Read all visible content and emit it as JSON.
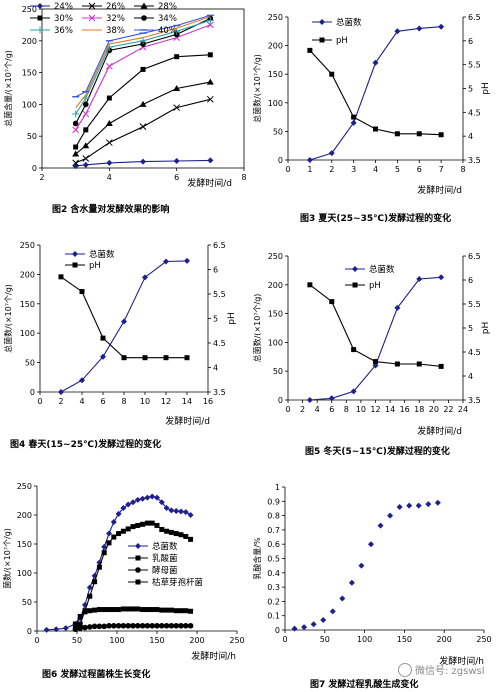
{
  "captions": {
    "fig2": "图2  含水量对发酵效果的影响",
    "fig3": "图3  夏天(25~35℃)发酵过程的变化",
    "fig4": "图4  春天(15~25℃)发酵过程的变化",
    "fig5": "图5  冬天(5~15℃)发酵过程的变化",
    "fig6": "图6  发酵过程菌株生长变化",
    "fig7": "图7  发酵过程乳酸生成变化"
  },
  "watermark": "微信号: zgswsl",
  "colors": {
    "navy": "#1f1f8f",
    "black": "#000000",
    "teal": "#2aa6a6",
    "magenta": "#cc33cc",
    "orange": "#e07a20",
    "blue": "#3355dd"
  },
  "chart_data": [
    {
      "id": "fig2",
      "type": "line",
      "xlabel": "发酵时间/d",
      "ylabel": "总菌含量/(×10⁷个/g)",
      "xlim": [
        2,
        8
      ],
      "ylim": [
        0,
        250
      ],
      "xticks": [
        2,
        4,
        6,
        8
      ],
      "yticks": [
        0,
        50,
        100,
        150,
        200,
        250
      ],
      "legend_columns": 3,
      "legend_placement": "top",
      "series": [
        {
          "name": "24%",
          "marker": "diamond",
          "color": "navy",
          "x": [
            3,
            3.3,
            4,
            5,
            6,
            7
          ],
          "y": [
            3,
            5,
            8,
            10,
            11,
            12
          ]
        },
        {
          "name": "26%",
          "marker": "x",
          "color": "black",
          "x": [
            3,
            3.3,
            4,
            5,
            6,
            7
          ],
          "y": [
            8,
            15,
            40,
            65,
            95,
            108
          ]
        },
        {
          "name": "28%",
          "marker": "triangle",
          "color": "black",
          "x": [
            3,
            3.3,
            4,
            5,
            6,
            7
          ],
          "y": [
            22,
            35,
            70,
            100,
            125,
            135
          ]
        },
        {
          "name": "30%",
          "marker": "square",
          "color": "black",
          "x": [
            3,
            3.3,
            4,
            5,
            6,
            7
          ],
          "y": [
            33,
            60,
            110,
            155,
            175,
            178
          ]
        },
        {
          "name": "32%",
          "marker": "x",
          "color": "magenta",
          "x": [
            3,
            3.3,
            4,
            5,
            6,
            7
          ],
          "y": [
            60,
            85,
            160,
            190,
            205,
            225
          ]
        },
        {
          "name": "34%",
          "marker": "circle",
          "color": "black",
          "x": [
            3,
            3.3,
            4,
            5,
            6,
            7
          ],
          "y": [
            70,
            100,
            185,
            195,
            210,
            235
          ]
        },
        {
          "name": "36%",
          "marker": "plus",
          "color": "teal",
          "x": [
            3,
            3.3,
            4,
            5,
            6,
            7
          ],
          "y": [
            85,
            110,
            190,
            200,
            215,
            232
          ]
        },
        {
          "name": "38%",
          "marker": "none",
          "color": "orange",
          "x": [
            3,
            3.3,
            4,
            5,
            6,
            7
          ],
          "y": [
            95,
            115,
            195,
            205,
            220,
            238
          ]
        },
        {
          "name": "40%",
          "marker": "dash",
          "color": "blue",
          "x": [
            3,
            3.3,
            4,
            5,
            6,
            7
          ],
          "y": [
            112,
            120,
            200,
            212,
            224,
            240
          ]
        }
      ]
    },
    {
      "id": "fig3",
      "type": "line",
      "xlabel": "发酵时间/d",
      "ylabel": "总菌数/(×10⁷个/g)",
      "y2label": "pH",
      "xlim": [
        0,
        8
      ],
      "ylim": [
        0,
        250
      ],
      "y2lim": [
        3.5,
        6.5
      ],
      "xticks": [
        0,
        1,
        2,
        3,
        4,
        5,
        6,
        7,
        8
      ],
      "yticks": [
        0,
        50,
        100,
        150,
        200,
        250
      ],
      "y2ticks": [
        3.5,
        4.0,
        4.5,
        5.0,
        5.5,
        6.0,
        6.5
      ],
      "legend_placement": "top-left",
      "series": [
        {
          "name": "总菌数",
          "marker": "diamond",
          "color": "navy",
          "axis": "left",
          "x": [
            1,
            2,
            3,
            4,
            5,
            6,
            7
          ],
          "y": [
            0,
            12,
            65,
            170,
            225,
            230,
            233
          ]
        },
        {
          "name": "pH",
          "marker": "square",
          "color": "black",
          "axis": "right",
          "x": [
            1,
            2,
            3,
            4,
            5,
            6,
            7
          ],
          "y": [
            5.8,
            5.3,
            4.4,
            4.15,
            4.05,
            4.05,
            4.03
          ]
        }
      ]
    },
    {
      "id": "fig4",
      "type": "line",
      "xlabel": "发酵时间/d",
      "ylabel": "总菌数/(×10⁷个/g)",
      "y2label": "pH",
      "xlim": [
        0,
        16
      ],
      "ylim": [
        0,
        250
      ],
      "y2lim": [
        3.5,
        6.5
      ],
      "xticks": [
        0,
        2,
        4,
        6,
        8,
        10,
        12,
        14,
        16
      ],
      "yticks": [
        0,
        50,
        100,
        150,
        200,
        250
      ],
      "y2ticks": [
        3.5,
        4.0,
        4.5,
        5.0,
        5.5,
        6.0,
        6.5
      ],
      "legend_placement": "top-center",
      "series": [
        {
          "name": "总菌数",
          "marker": "diamond",
          "color": "navy",
          "axis": "left",
          "x": [
            2,
            4,
            6,
            8,
            10,
            12,
            14
          ],
          "y": [
            0,
            20,
            60,
            120,
            195,
            222,
            223
          ]
        },
        {
          "name": "pH",
          "marker": "square",
          "color": "black",
          "axis": "right",
          "x": [
            2,
            4,
            6,
            8,
            10,
            12,
            14
          ],
          "y": [
            5.85,
            5.55,
            4.6,
            4.2,
            4.2,
            4.2,
            4.2
          ]
        }
      ]
    },
    {
      "id": "fig5",
      "type": "line",
      "xlabel": "发酵时间/d",
      "ylabel": "总菌数/(×10⁷个/g)",
      "y2label": "pH",
      "xlim": [
        0,
        24
      ],
      "ylim": [
        0,
        250
      ],
      "y2lim": [
        3.5,
        6.5
      ],
      "xticks": [
        0,
        2,
        4,
        6,
        8,
        10,
        12,
        14,
        16,
        18,
        20,
        22,
        24
      ],
      "yticks": [
        0,
        50,
        100,
        150,
        200,
        250
      ],
      "y2ticks": [
        3.5,
        4.0,
        4.5,
        5.0,
        5.5,
        6.0,
        6.5
      ],
      "legend_placement": "top-center",
      "series": [
        {
          "name": "总菌数",
          "marker": "diamond",
          "color": "navy",
          "axis": "left",
          "x": [
            3,
            6,
            9,
            12,
            15,
            18,
            21
          ],
          "y": [
            0,
            3,
            15,
            60,
            160,
            210,
            213
          ]
        },
        {
          "name": "pH",
          "marker": "square",
          "color": "black",
          "axis": "right",
          "x": [
            3,
            6,
            9,
            12,
            15,
            18,
            21
          ],
          "y": [
            5.9,
            5.55,
            4.55,
            4.3,
            4.25,
            4.25,
            4.2
          ]
        }
      ]
    },
    {
      "id": "fig6",
      "type": "line",
      "xlabel": "发酵时间/h",
      "ylabel": "菌数/(×10⁷个/g)",
      "xlim": [
        0,
        250
      ],
      "ylim": [
        0,
        250
      ],
      "xticks": [
        0,
        50,
        100,
        150,
        200,
        250
      ],
      "yticks": [
        0,
        50,
        100,
        150,
        200,
        250
      ],
      "legend_placement": "right",
      "series": [
        {
          "name": "总菌数",
          "marker": "diamond",
          "color": "navy",
          "x": [
            12,
            24,
            36,
            48,
            54,
            60,
            66,
            72,
            78,
            84,
            90,
            96,
            102,
            108,
            114,
            120,
            126,
            132,
            138,
            144,
            150,
            156,
            162,
            168,
            174,
            180,
            186,
            192
          ],
          "y": [
            2,
            3,
            5,
            12,
            22,
            45,
            75,
            95,
            118,
            145,
            168,
            188,
            202,
            212,
            218,
            222,
            226,
            228,
            230,
            232,
            230,
            222,
            212,
            208,
            207,
            206,
            205,
            200
          ]
        },
        {
          "name": "乳酸菌",
          "marker": "square",
          "color": "black",
          "x": [
            48,
            54,
            60,
            66,
            72,
            78,
            84,
            90,
            96,
            102,
            108,
            114,
            120,
            126,
            132,
            138,
            144,
            150,
            156,
            162,
            168,
            174,
            180,
            186,
            192
          ],
          "y": [
            5,
            12,
            35,
            60,
            85,
            110,
            135,
            152,
            162,
            168,
            172,
            176,
            180,
            182,
            184,
            186,
            186,
            182,
            175,
            172,
            170,
            168,
            166,
            163,
            158
          ]
        },
        {
          "name": "酵母菌",
          "marker": "circle",
          "color": "black",
          "x": [
            48,
            54,
            60,
            66,
            72,
            78,
            84,
            90,
            96,
            102,
            108,
            114,
            120,
            126,
            132,
            138,
            144,
            150,
            156,
            162,
            168,
            174,
            180,
            186,
            192
          ],
          "y": [
            3,
            5,
            6,
            7,
            8,
            8,
            8,
            9,
            9,
            9,
            9,
            9,
            9,
            9,
            9,
            9,
            9,
            9,
            9,
            9,
            9,
            9,
            9,
            9,
            9
          ]
        },
        {
          "name": "枯草芽孢杆菌",
          "marker": "square",
          "color": "black",
          "x": [
            48,
            54,
            60,
            66,
            72,
            78,
            84,
            90,
            96,
            102,
            108,
            114,
            120,
            126,
            132,
            138,
            144,
            150,
            156,
            162,
            168,
            174,
            180,
            186,
            192
          ],
          "y": [
            12,
            25,
            33,
            35,
            36,
            37,
            37,
            37,
            37,
            37,
            38,
            38,
            38,
            38,
            37,
            37,
            37,
            37,
            36,
            36,
            36,
            35,
            35,
            35,
            34
          ]
        }
      ]
    },
    {
      "id": "fig7",
      "type": "scatter",
      "xlabel": "发酵时间/h",
      "ylabel": "乳酸含量/%",
      "xlim": [
        0,
        250
      ],
      "ylim": [
        0,
        1.0
      ],
      "xticks": [
        0,
        50,
        100,
        150,
        200,
        250
      ],
      "yticks": [
        0,
        0.1,
        0.2,
        0.3,
        0.4,
        0.5,
        0.6,
        0.7,
        0.8,
        0.9,
        1.0
      ],
      "series": [
        {
          "name": "",
          "marker": "diamond",
          "color": "navy",
          "x": [
            12,
            24,
            36,
            48,
            60,
            72,
            84,
            96,
            108,
            120,
            132,
            144,
            156,
            168,
            180,
            192
          ],
          "y": [
            0.01,
            0.02,
            0.04,
            0.07,
            0.13,
            0.22,
            0.33,
            0.45,
            0.6,
            0.73,
            0.8,
            0.86,
            0.87,
            0.87,
            0.88,
            0.89
          ]
        }
      ]
    }
  ]
}
